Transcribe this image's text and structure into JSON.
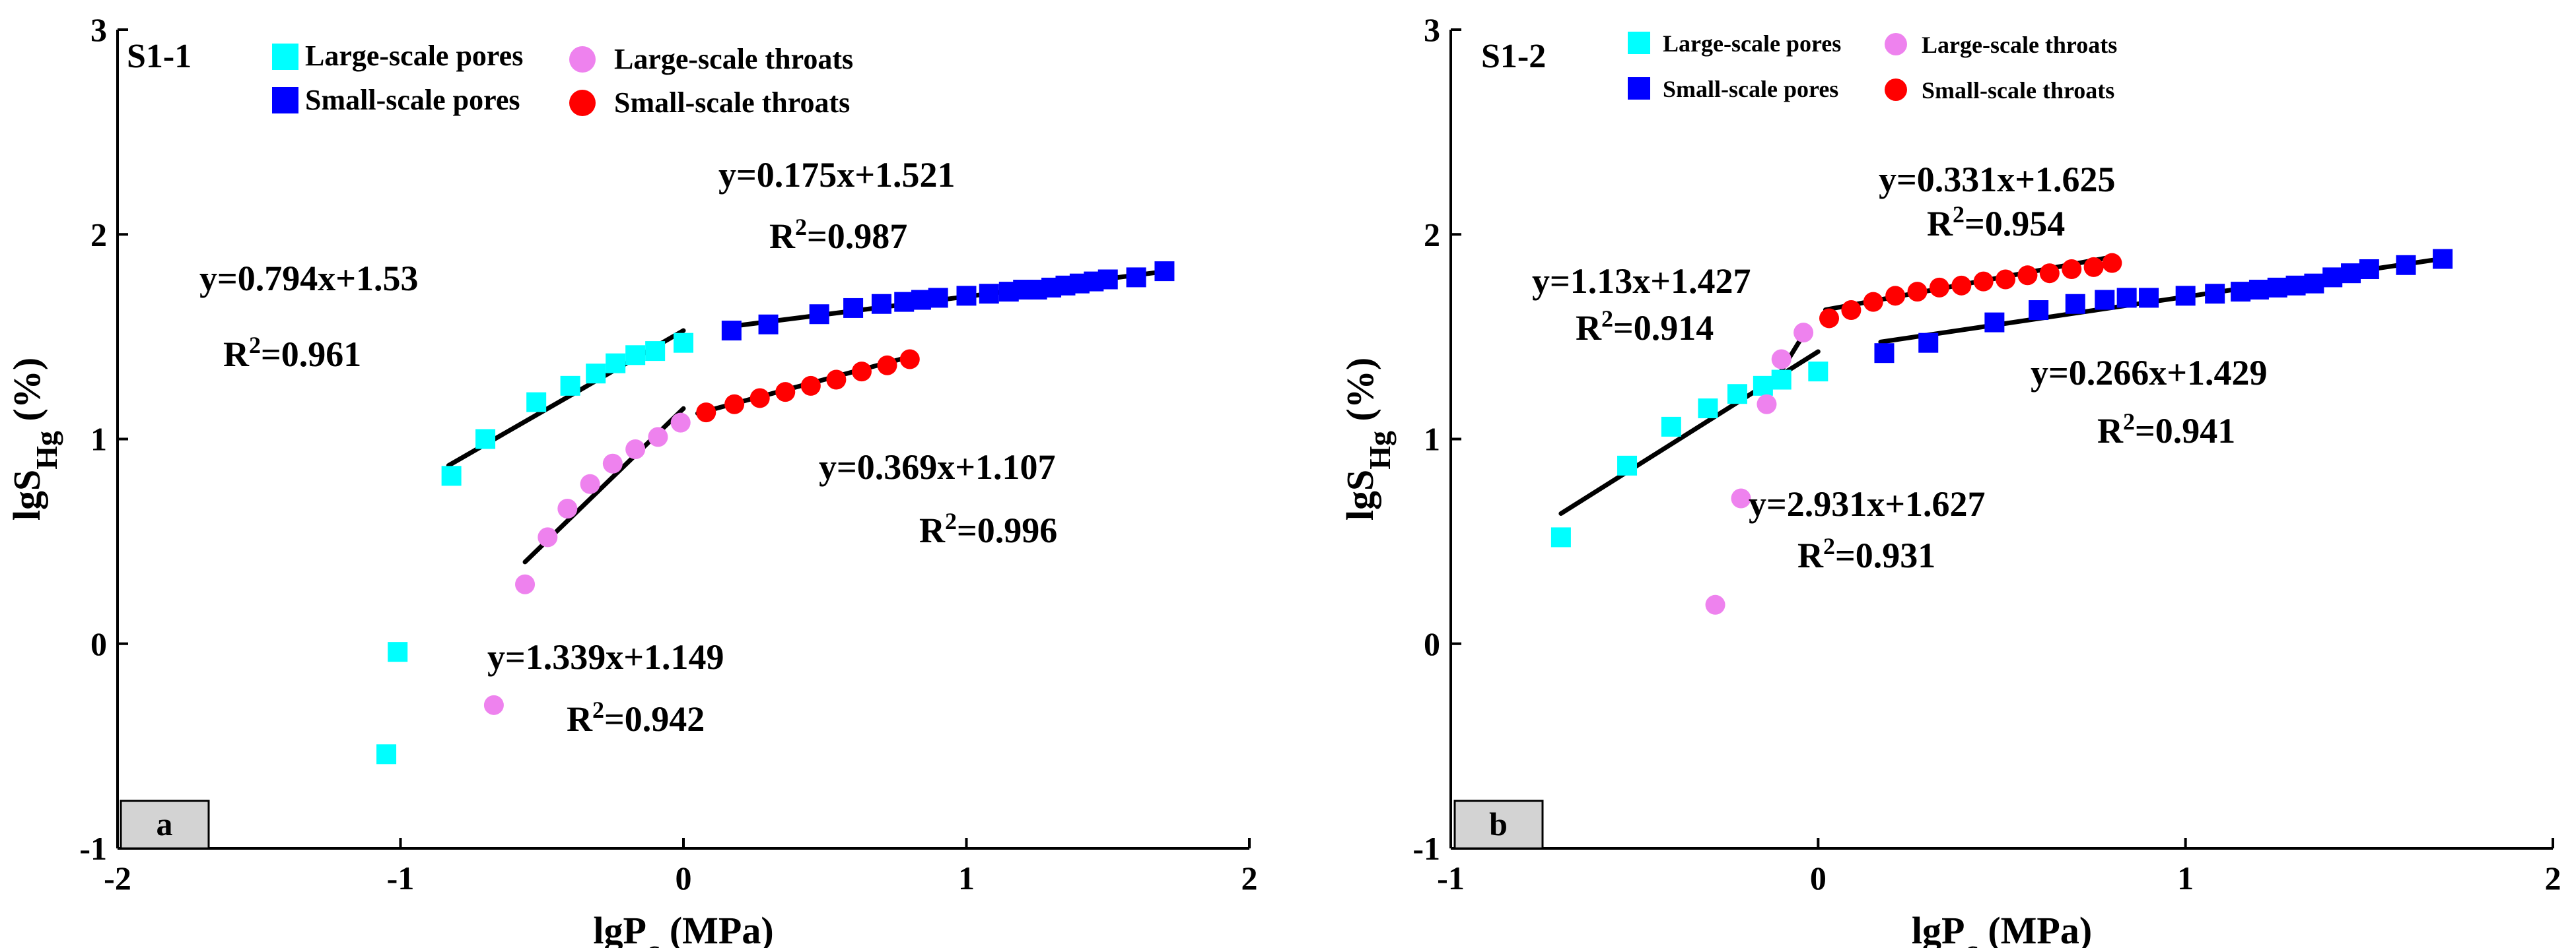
{
  "figure": {
    "description_free": true
  },
  "chart_data": [
    {
      "type": "scatter",
      "panel_tag": "a",
      "title": "S1-1",
      "xlabel": {
        "main": "lgP",
        "sub": "c",
        "unit": " (MPa)"
      },
      "ylabel": {
        "main": "lgS",
        "sub": "Hg",
        "unit": " (%)"
      },
      "xlim": [
        -2,
        2
      ],
      "ylim": [
        -1,
        3
      ],
      "xticks": [
        -2,
        -1,
        0,
        1,
        2
      ],
      "yticks": [
        -1,
        0,
        1,
        2,
        3
      ],
      "xtick_labels": [
        "-2",
        "-1",
        "0",
        "1",
        "2"
      ],
      "ytick_labels": [
        "-1",
        "0",
        "1",
        "2",
        "3"
      ],
      "legend": [
        {
          "name": "Large-scale pores",
          "marker": "square",
          "color": "#00ffff"
        },
        {
          "name": "Large-scale throats",
          "marker": "circle",
          "color": "#ee82ee"
        },
        {
          "name": "Small-scale pores",
          "marker": "square",
          "color": "#0000ff"
        },
        {
          "name": "Small-scale throats",
          "marker": "circle",
          "color": "#ff0000"
        }
      ],
      "series": [
        {
          "name": "Large-scale pores",
          "marker": "square",
          "color": "#00ffff",
          "x": [
            -1.05,
            -1.01,
            -0.82,
            -0.7,
            -0.52,
            -0.4,
            -0.31,
            -0.24,
            -0.17,
            -0.1,
            0.0
          ],
          "y": [
            -0.54,
            -0.04,
            0.82,
            1.0,
            1.18,
            1.26,
            1.32,
            1.37,
            1.41,
            1.43,
            1.47
          ]
        },
        {
          "name": "Large-scale throats",
          "marker": "circle",
          "color": "#ee82ee",
          "x": [
            -0.67,
            -0.56,
            -0.48,
            -0.41,
            -0.33,
            -0.25,
            -0.17,
            -0.09,
            -0.01
          ],
          "y": [
            -0.3,
            0.29,
            0.52,
            0.66,
            0.78,
            0.88,
            0.95,
            1.01,
            1.08
          ]
        },
        {
          "name": "Small-scale pores",
          "marker": "square",
          "color": "#0000ff",
          "x": [
            0.17,
            0.3,
            0.48,
            0.6,
            0.7,
            0.78,
            0.84,
            0.9,
            1.0,
            1.08,
            1.15,
            1.2,
            1.25,
            1.3,
            1.35,
            1.4,
            1.45,
            1.5,
            1.6,
            1.7
          ],
          "y": [
            1.53,
            1.56,
            1.61,
            1.64,
            1.66,
            1.67,
            1.68,
            1.69,
            1.7,
            1.71,
            1.72,
            1.73,
            1.73,
            1.74,
            1.75,
            1.76,
            1.77,
            1.78,
            1.79,
            1.82
          ]
        },
        {
          "name": "Small-scale throats",
          "marker": "circle",
          "color": "#ff0000",
          "x": [
            0.08,
            0.18,
            0.27,
            0.36,
            0.45,
            0.54,
            0.63,
            0.72,
            0.8
          ],
          "y": [
            1.13,
            1.17,
            1.2,
            1.23,
            1.26,
            1.29,
            1.33,
            1.36,
            1.39
          ]
        }
      ],
      "fits": [
        {
          "label": "y=0.794x+1.53",
          "slope": 0.794,
          "intercept": 1.53,
          "x_range": [
            -0.83,
            0.0
          ]
        },
        {
          "label": "y=1.339x+1.149",
          "slope": 1.339,
          "intercept": 1.149,
          "x_range": [
            -0.56,
            0.0
          ]
        },
        {
          "label": "y=0.175x+1.521",
          "slope": 0.175,
          "intercept": 1.521,
          "x_range": [
            0.15,
            1.7
          ]
        },
        {
          "label": "y=0.369x+1.107",
          "slope": 0.369,
          "intercept": 1.107,
          "x_range": [
            0.05,
            0.8
          ]
        }
      ],
      "annotations": [
        {
          "equation": "y=0.794x+1.53",
          "r2": "0.961"
        },
        {
          "equation": "y=1.339x+1.149",
          "r2": "0.942"
        },
        {
          "equation": "y=0.175x+1.521",
          "r2": "0.987"
        },
        {
          "equation": "y=0.369x+1.107",
          "r2": "0.996"
        }
      ],
      "r2_prefix": "R",
      "r2_sup": "2",
      "r2_sep": "="
    },
    {
      "type": "scatter",
      "panel_tag": "b",
      "title": "S1-2",
      "xlabel": {
        "main": "lgP",
        "sub": "c",
        "unit": " (MPa)"
      },
      "ylabel": {
        "main": "lgS",
        "sub": "Hg",
        "unit": " (%)"
      },
      "xlim": [
        -1,
        2
      ],
      "ylim": [
        -1,
        3
      ],
      "xticks": [
        -1,
        0,
        1,
        2
      ],
      "yticks": [
        -1,
        0,
        1,
        2,
        3
      ],
      "xtick_labels": [
        "-1",
        "0",
        "1",
        "2"
      ],
      "ytick_labels": [
        "-1",
        "0",
        "1",
        "2",
        "3"
      ],
      "legend": [
        {
          "name": "Large-scale pores",
          "marker": "square",
          "color": "#00ffff"
        },
        {
          "name": "Large-scale throats",
          "marker": "circle",
          "color": "#ee82ee"
        },
        {
          "name": "Small-scale pores",
          "marker": "square",
          "color": "#0000ff"
        },
        {
          "name": "Small-scale throats",
          "marker": "circle",
          "color": "#ff0000"
        }
      ],
      "series": [
        {
          "name": "Large-scale pores",
          "marker": "square",
          "color": "#00ffff",
          "x": [
            -0.7,
            -0.52,
            -0.4,
            -0.3,
            -0.22,
            -0.15,
            -0.1,
            0.0
          ],
          "y": [
            0.52,
            0.87,
            1.06,
            1.15,
            1.22,
            1.26,
            1.29,
            1.33
          ]
        },
        {
          "name": "Large-scale throats",
          "marker": "circle",
          "color": "#ee82ee",
          "x": [
            -0.28,
            -0.21,
            -0.14,
            -0.1,
            -0.04
          ],
          "y": [
            0.19,
            0.71,
            1.17,
            1.39,
            1.52
          ]
        },
        {
          "name": "Small-scale pores",
          "marker": "square",
          "color": "#0000ff",
          "x": [
            0.18,
            0.3,
            0.48,
            0.6,
            0.7,
            0.78,
            0.84,
            0.9,
            1.0,
            1.08,
            1.15,
            1.2,
            1.25,
            1.3,
            1.35,
            1.4,
            1.45,
            1.5,
            1.6,
            1.7
          ],
          "y": [
            1.42,
            1.47,
            1.57,
            1.63,
            1.66,
            1.68,
            1.69,
            1.69,
            1.7,
            1.71,
            1.72,
            1.73,
            1.74,
            1.75,
            1.76,
            1.79,
            1.81,
            1.83,
            1.85,
            1.88
          ]
        },
        {
          "name": "Small-scale throats",
          "marker": "circle",
          "color": "#ff0000",
          "x": [
            0.03,
            0.09,
            0.15,
            0.21,
            0.27,
            0.33,
            0.39,
            0.45,
            0.51,
            0.57,
            0.63,
            0.69,
            0.75,
            0.8
          ],
          "y": [
            1.59,
            1.63,
            1.67,
            1.7,
            1.72,
            1.74,
            1.75,
            1.77,
            1.78,
            1.8,
            1.81,
            1.83,
            1.84,
            1.86
          ]
        }
      ],
      "fits": [
        {
          "label": "y=1.13x+1.427",
          "slope": 1.13,
          "intercept": 1.427,
          "x_range": [
            -0.7,
            0.0
          ]
        },
        {
          "label": "y=2.931x+1.627",
          "slope": 2.931,
          "intercept": 1.627,
          "x_range": [
            -0.14,
            -0.03
          ]
        },
        {
          "label": "y=0.331x+1.625",
          "slope": 0.331,
          "intercept": 1.625,
          "x_range": [
            0.02,
            0.8
          ]
        },
        {
          "label": "y=0.266x+1.429",
          "slope": 0.266,
          "intercept": 1.429,
          "x_range": [
            0.17,
            1.7
          ]
        }
      ],
      "annotations": [
        {
          "equation": "y=1.13x+1.427",
          "r2": "0.914"
        },
        {
          "equation": "y=2.931x+1.627",
          "r2": "0.931"
        },
        {
          "equation": "y=0.331x+1.625",
          "r2": "0.954"
        },
        {
          "equation": "y=0.266x+1.429",
          "r2": "0.941"
        }
      ],
      "r2_prefix": "R",
      "r2_sup": "2",
      "r2_sep": "="
    }
  ]
}
